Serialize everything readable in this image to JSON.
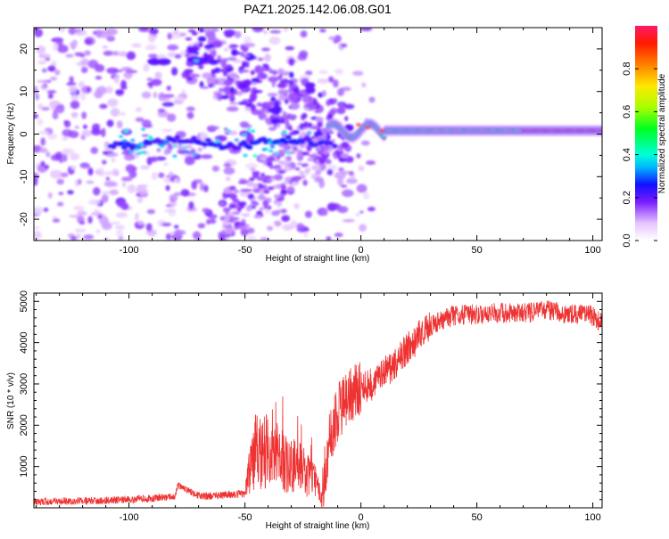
{
  "title": "PAZ1.2025.142.06.08.G01",
  "chart_data": [
    {
      "type": "heatmap",
      "title": "PAZ1.2025.142.06.08.G01",
      "xlabel": "Height of straight line (km)",
      "ylabel": "Frequency (Hz)",
      "xlim": [
        -141,
        104
      ],
      "ylim": [
        -25,
        25
      ],
      "xticks": [
        -100,
        -50,
        0,
        50,
        100
      ],
      "yticks": [
        -20,
        -10,
        0,
        10,
        20
      ],
      "colorbar": {
        "label": "Normalized spectral amplitude",
        "range": [
          0,
          1
        ],
        "ticks": [
          0.0,
          0.2,
          0.4,
          0.6,
          0.8
        ]
      },
      "features": {
        "coherent_signal": {
          "description_freq_hz": 0.8,
          "x_range": [
            -10,
            104
          ],
          "peak_amplitude_region": [
            70,
            104
          ]
        },
        "noisy_region": {
          "x_range": [
            -141,
            -20
          ]
        }
      },
      "grid": false
    },
    {
      "type": "line",
      "xlabel": "Height of straight line (km)",
      "ylabel": "SNR (10 * v/v)",
      "xlim": [
        -141,
        104
      ],
      "ylim": [
        0,
        5200
      ],
      "xticks": [
        -100,
        -50,
        0,
        50,
        100
      ],
      "yticks": [
        1000,
        2000,
        3000,
        4000,
        5000
      ],
      "color": "#ee3333",
      "series": [
        {
          "x": [
            -141,
            -130,
            -120,
            -110,
            -100,
            -90,
            -80,
            -79,
            -70,
            -60,
            -50,
            -48,
            -45,
            -40,
            -35,
            -30,
            -25,
            -20,
            -17,
            -14,
            -10,
            -5,
            0,
            5,
            10,
            15,
            20,
            25,
            30,
            35,
            40,
            50,
            60,
            70,
            80,
            90,
            100,
            104
          ],
          "y": [
            150,
            160,
            170,
            180,
            200,
            230,
            280,
            550,
            280,
            300,
            340,
            900,
            1500,
            1400,
            1300,
            1100,
            950,
            700,
            250,
            1500,
            2300,
            2700,
            2900,
            3000,
            3250,
            3500,
            3850,
            4150,
            4400,
            4550,
            4650,
            4700,
            4720,
            4720,
            4780,
            4700,
            4650,
            4450
          ]
        }
      ],
      "grid": false
    }
  ]
}
